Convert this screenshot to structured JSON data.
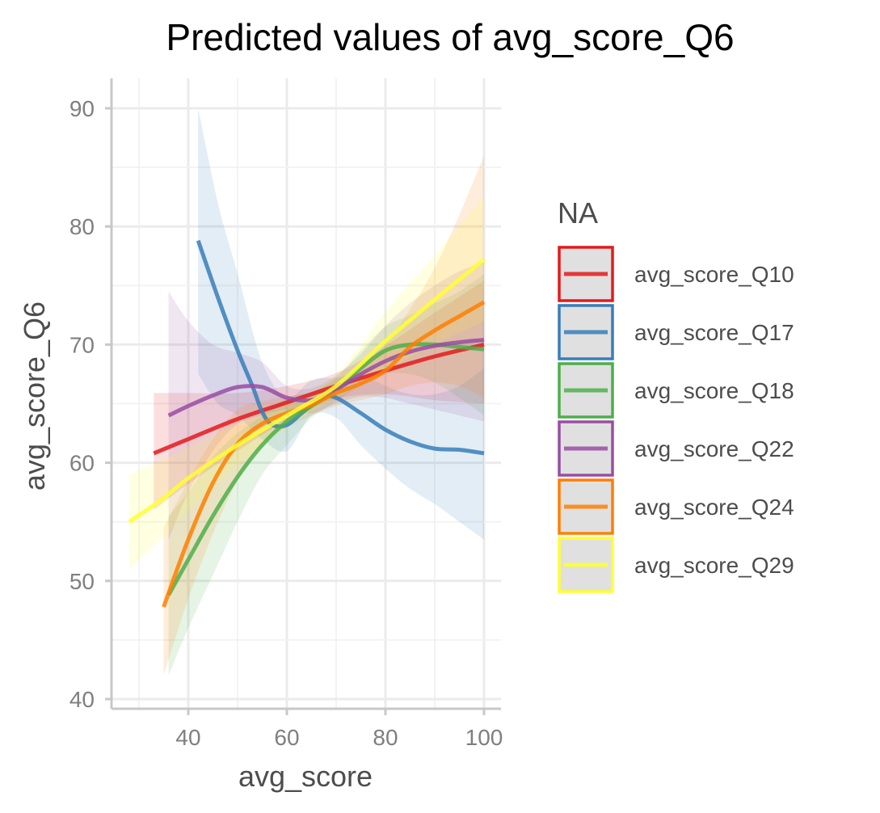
{
  "chart_data": {
    "type": "line",
    "title": "Predicted values of avg_score_Q6",
    "xlabel": "avg_score",
    "ylabel": "avg_score_Q6",
    "xlim": [
      25,
      101
    ],
    "ylim": [
      39.5,
      92.5
    ],
    "x_ticks": [
      40,
      60,
      80,
      100
    ],
    "y_ticks": [
      40,
      50,
      60,
      70,
      80,
      90
    ],
    "x_tick_labels": [
      "40",
      "60",
      "80",
      "100"
    ],
    "y_tick_labels": [
      "40",
      "50",
      "60",
      "70",
      "80",
      "90"
    ],
    "grid": true,
    "legend": {
      "title": "NA",
      "position": "right"
    },
    "series": [
      {
        "name": "avg_score_Q10",
        "color": "#E41A1C",
        "points": [
          [
            33,
            60.8
          ],
          [
            40,
            62.0
          ],
          [
            50,
            63.7
          ],
          [
            60,
            65.1
          ],
          [
            70,
            66.5
          ],
          [
            80,
            67.8
          ],
          [
            90,
            69.0
          ],
          [
            100,
            70.0
          ]
        ],
        "ci": [
          [
            33,
            56.0,
            65.9
          ],
          [
            40,
            58.2,
            65.9
          ],
          [
            50,
            61.0,
            65.9
          ],
          [
            60,
            63.6,
            66.5
          ],
          [
            70,
            65.4,
            67.6
          ],
          [
            80,
            65.8,
            69.9
          ],
          [
            90,
            65.3,
            72.7
          ],
          [
            100,
            65.0,
            75.4
          ]
        ]
      },
      {
        "name": "avg_score_Q17",
        "color": "#377EB8",
        "points": [
          [
            42,
            78.8
          ],
          [
            46,
            74.0
          ],
          [
            50,
            69.5
          ],
          [
            53,
            66.5
          ],
          [
            55,
            64.3
          ],
          [
            57,
            63.2
          ],
          [
            60,
            63.2
          ],
          [
            63,
            64.2
          ],
          [
            67,
            65.5
          ],
          [
            70,
            65.5
          ],
          [
            75,
            64.2
          ],
          [
            80,
            62.8
          ],
          [
            85,
            61.8
          ],
          [
            90,
            61.2
          ],
          [
            95,
            61.1
          ],
          [
            100,
            60.8
          ]
        ],
        "ci": [
          [
            42,
            67.5,
            90.0
          ],
          [
            46,
            65.0,
            82.0
          ],
          [
            50,
            64.0,
            76.0
          ],
          [
            55,
            62.0,
            68.5
          ],
          [
            60,
            61.0,
            65.5
          ],
          [
            65,
            64.0,
            67.0
          ],
          [
            70,
            63.8,
            67.2
          ],
          [
            75,
            61.5,
            67.5
          ],
          [
            80,
            59.5,
            66.5
          ],
          [
            85,
            57.8,
            65.8
          ],
          [
            90,
            56.5,
            65.8
          ],
          [
            95,
            55.0,
            66.5
          ],
          [
            100,
            53.5,
            68.0
          ]
        ]
      },
      {
        "name": "avg_score_Q18",
        "color": "#4DAF4A",
        "points": [
          [
            36,
            48.8
          ],
          [
            40,
            51.8
          ],
          [
            45,
            55.5
          ],
          [
            50,
            58.8
          ],
          [
            55,
            61.5
          ],
          [
            60,
            63.5
          ],
          [
            65,
            64.8
          ],
          [
            70,
            66.2
          ],
          [
            75,
            68.0
          ],
          [
            80,
            69.5
          ],
          [
            85,
            70.0
          ],
          [
            90,
            70.0
          ],
          [
            95,
            69.8
          ],
          [
            100,
            69.6
          ]
        ],
        "ci": [
          [
            36,
            42.0,
            55.5
          ],
          [
            40,
            46.0,
            57.5
          ],
          [
            45,
            50.5,
            60.5
          ],
          [
            50,
            55.0,
            62.5
          ],
          [
            55,
            59.0,
            64.0
          ],
          [
            60,
            61.5,
            65.5
          ],
          [
            65,
            63.8,
            66.0
          ],
          [
            70,
            65.2,
            67.2
          ],
          [
            75,
            66.5,
            69.5
          ],
          [
            80,
            67.5,
            71.5
          ],
          [
            85,
            67.5,
            72.5
          ],
          [
            90,
            66.8,
            73.5
          ],
          [
            95,
            65.5,
            74.5
          ],
          [
            100,
            64.0,
            76.0
          ]
        ]
      },
      {
        "name": "avg_score_Q22",
        "color": "#984EA3",
        "points": [
          [
            36,
            64.0
          ],
          [
            40,
            64.8
          ],
          [
            45,
            65.7
          ],
          [
            50,
            66.4
          ],
          [
            55,
            66.4
          ],
          [
            60,
            65.5
          ],
          [
            65,
            65.3
          ],
          [
            70,
            66.2
          ],
          [
            75,
            67.5
          ],
          [
            80,
            68.6
          ],
          [
            85,
            69.4
          ],
          [
            90,
            69.9
          ],
          [
            95,
            70.2
          ],
          [
            100,
            70.4
          ]
        ],
        "ci": [
          [
            36,
            53.5,
            74.5
          ],
          [
            40,
            57.5,
            72.0
          ],
          [
            45,
            61.0,
            70.0
          ],
          [
            50,
            63.3,
            69.3
          ],
          [
            55,
            64.0,
            68.5
          ],
          [
            60,
            64.5,
            66.5
          ],
          [
            65,
            64.2,
            66.3
          ],
          [
            70,
            65.0,
            67.4
          ],
          [
            75,
            65.6,
            69.2
          ],
          [
            80,
            65.5,
            71.6
          ],
          [
            85,
            65.0,
            73.5
          ],
          [
            90,
            64.5,
            75.0
          ],
          [
            95,
            64.0,
            76.2
          ],
          [
            100,
            63.5,
            77.0
          ]
        ]
      },
      {
        "name": "avg_score_Q24",
        "color": "#FF7F00",
        "points": [
          [
            35,
            47.8
          ],
          [
            40,
            53.5
          ],
          [
            45,
            58.3
          ],
          [
            50,
            61.6
          ],
          [
            55,
            63.3
          ],
          [
            60,
            64.2
          ],
          [
            65,
            64.9
          ],
          [
            70,
            65.9
          ],
          [
            75,
            66.7
          ],
          [
            80,
            67.8
          ],
          [
            85,
            69.8
          ],
          [
            90,
            71.2
          ],
          [
            95,
            72.4
          ],
          [
            100,
            73.6
          ]
        ],
        "ci": [
          [
            35,
            42.0,
            54.5
          ],
          [
            40,
            48.5,
            58.5
          ],
          [
            45,
            54.0,
            62.0
          ],
          [
            50,
            58.5,
            64.5
          ],
          [
            55,
            61.5,
            65.2
          ],
          [
            60,
            63.0,
            65.6
          ],
          [
            65,
            64.0,
            66.0
          ],
          [
            70,
            64.8,
            67.0
          ],
          [
            75,
            65.3,
            68.2
          ],
          [
            80,
            65.8,
            70.0
          ],
          [
            85,
            66.5,
            73.0
          ],
          [
            90,
            66.8,
            76.5
          ],
          [
            95,
            66.5,
            81.0
          ],
          [
            100,
            65.5,
            86.0
          ]
        ]
      },
      {
        "name": "avg_score_Q29",
        "color": "#FFFF33",
        "points": [
          [
            28,
            55.0
          ],
          [
            35,
            57.0
          ],
          [
            40,
            58.7
          ],
          [
            50,
            61.5
          ],
          [
            60,
            64.0
          ],
          [
            70,
            66.5
          ],
          [
            80,
            70.3
          ],
          [
            90,
            73.8
          ],
          [
            100,
            77.2
          ]
        ],
        "ci": [
          [
            28,
            51.0,
            59.0
          ],
          [
            35,
            53.8,
            60.3
          ],
          [
            40,
            56.0,
            61.4
          ],
          [
            50,
            59.8,
            63.3
          ],
          [
            60,
            63.0,
            65.0
          ],
          [
            70,
            65.5,
            67.5
          ],
          [
            80,
            67.8,
            72.8
          ],
          [
            90,
            70.0,
            77.6
          ],
          [
            100,
            72.0,
            82.5
          ]
        ]
      }
    ]
  }
}
